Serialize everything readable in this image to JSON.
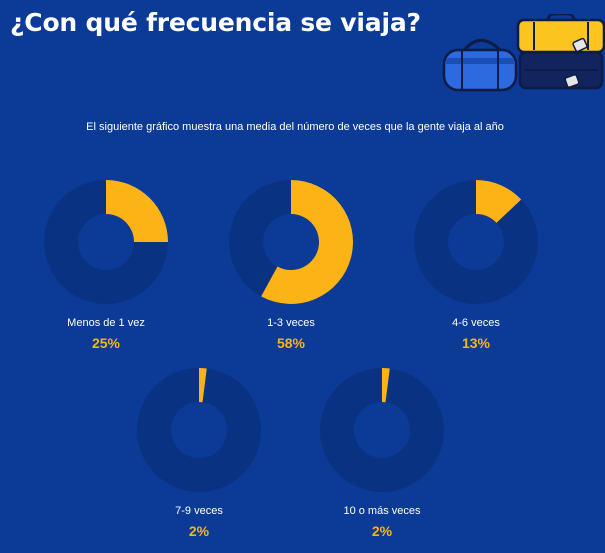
{
  "header": {
    "title": "¿Con qué frecuencia se viaja?",
    "subtitle": "El siguiente gráfico muestra una media del número de veces que la gente viaja al año"
  },
  "colors": {
    "background": "#0b3a97",
    "ring": "#0a3282",
    "accent": "#fcb316",
    "text": "#ffffff"
  },
  "illustration": {
    "icon": "luggage-bags-icon"
  },
  "chart_data": [
    {
      "type": "pie",
      "category": "Menos de 1 vez",
      "value": 25,
      "label": "25%"
    },
    {
      "type": "pie",
      "category": "1-3 veces",
      "value": 58,
      "label": "58%"
    },
    {
      "type": "pie",
      "category": "4-6 veces",
      "value": 13,
      "label": "13%"
    },
    {
      "type": "pie",
      "category": "7-9 veces",
      "value": 2,
      "label": "2%"
    },
    {
      "type": "pie",
      "category": "10 o más veces",
      "value": 2,
      "label": "2%"
    }
  ]
}
